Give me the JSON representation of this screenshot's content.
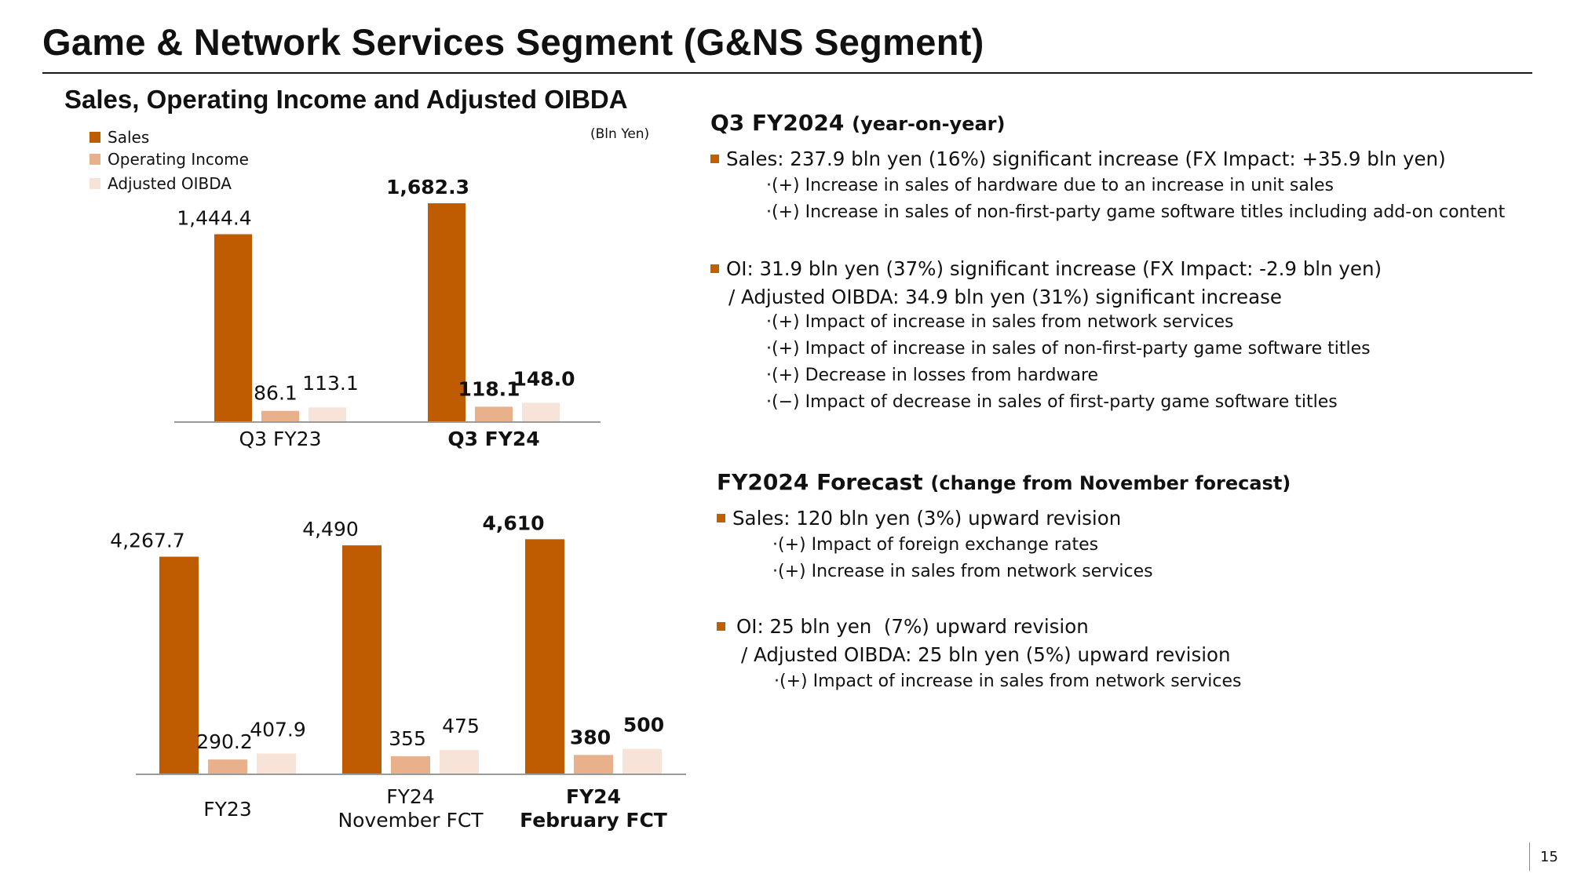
{
  "title": "Game & Network Services Segment (G&NS Segment)",
  "chart_section": {
    "heading": "Sales, Operating Income and Adjusted OIBDA",
    "unit": "(Bln Yen)",
    "legend": [
      {
        "label": "Sales",
        "color": "#bf5b00"
      },
      {
        "label": "Operating Income",
        "color": "#e8b18c"
      },
      {
        "label": "Adjusted OIBDA",
        "color": "#f7e3d8"
      }
    ]
  },
  "chart_data": [
    {
      "type": "bar",
      "title": "Q3 comparison",
      "categories": [
        "Q3 FY23",
        "Q3 FY24"
      ],
      "bold_categories": [
        false,
        true
      ],
      "series": [
        {
          "name": "Sales",
          "values": [
            1444.4,
            1682.3
          ],
          "labels": [
            "1,444.4",
            "1,682.3"
          ]
        },
        {
          "name": "Operating Income",
          "values": [
            86.1,
            118.1
          ],
          "labels": [
            "86.1",
            "118.1"
          ]
        },
        {
          "name": "Adjusted OIBDA",
          "values": [
            113.1,
            148.0
          ],
          "labels": [
            "113.1",
            "148.0"
          ]
        }
      ],
      "ylim": [
        0,
        1900
      ],
      "grid": false
    },
    {
      "type": "bar",
      "title": "Full-year forecast",
      "categories": [
        "FY23",
        "FY24\nNovember FCT",
        "FY24\nFebruary FCT"
      ],
      "bold_categories": [
        false,
        false,
        true
      ],
      "series": [
        {
          "name": "Sales",
          "values": [
            4267.7,
            4490,
            4610
          ],
          "labels": [
            "4,267.7",
            "4,490",
            "4,610"
          ]
        },
        {
          "name": "Operating Income",
          "values": [
            290.2,
            355,
            380
          ],
          "labels": [
            "290.2",
            "355",
            "380"
          ]
        },
        {
          "name": "Adjusted OIBDA",
          "values": [
            407.9,
            475,
            500
          ],
          "labels": [
            "407.9",
            "475",
            "500"
          ]
        }
      ],
      "ylim": [
        0,
        5000
      ],
      "grid": false
    }
  ],
  "q3": {
    "heading": "Q3 FY2024",
    "heading_sub": "(year-on-year)",
    "sales_line": "Sales: 237.9 bln yen (16%) significant increase (FX Impact: +35.9 bln yen)",
    "sales_points": [
      "·(+) Increase in sales of hardware due to an increase in unit sales",
      "·(+) Increase in sales of non-first-party game software titles including add-on content"
    ],
    "oi_line": "OI: 31.9 bln yen (37%) significant increase (FX Impact: -2.9 bln yen)",
    "oibda_line": "/ Adjusted OIBDA: 34.9 bln yen (31%) significant increase",
    "oi_points": [
      "·(+) Impact of increase in sales from network services",
      "·(+) Impact of increase in sales of non-first-party game software titles",
      "·(+) Decrease in losses from hardware",
      "·(−) Impact of decrease in sales of first-party game software titles"
    ]
  },
  "forecast": {
    "heading": "FY2024 Forecast",
    "heading_sub": "(change from November forecast)",
    "sales_line": "Sales: 120 bln yen (3%) upward revision",
    "sales_points": [
      "·(+) Impact of foreign exchange rates",
      "·(+) Increase in sales from network services"
    ],
    "oi_line": "OI: 25 bln yen  (7%) upward revision",
    "oibda_line": "/ Adjusted OIBDA: 25 bln yen (5%) upward revision",
    "oi_points": [
      "·(+) Impact of increase in sales from network services"
    ]
  },
  "page_number": "15"
}
